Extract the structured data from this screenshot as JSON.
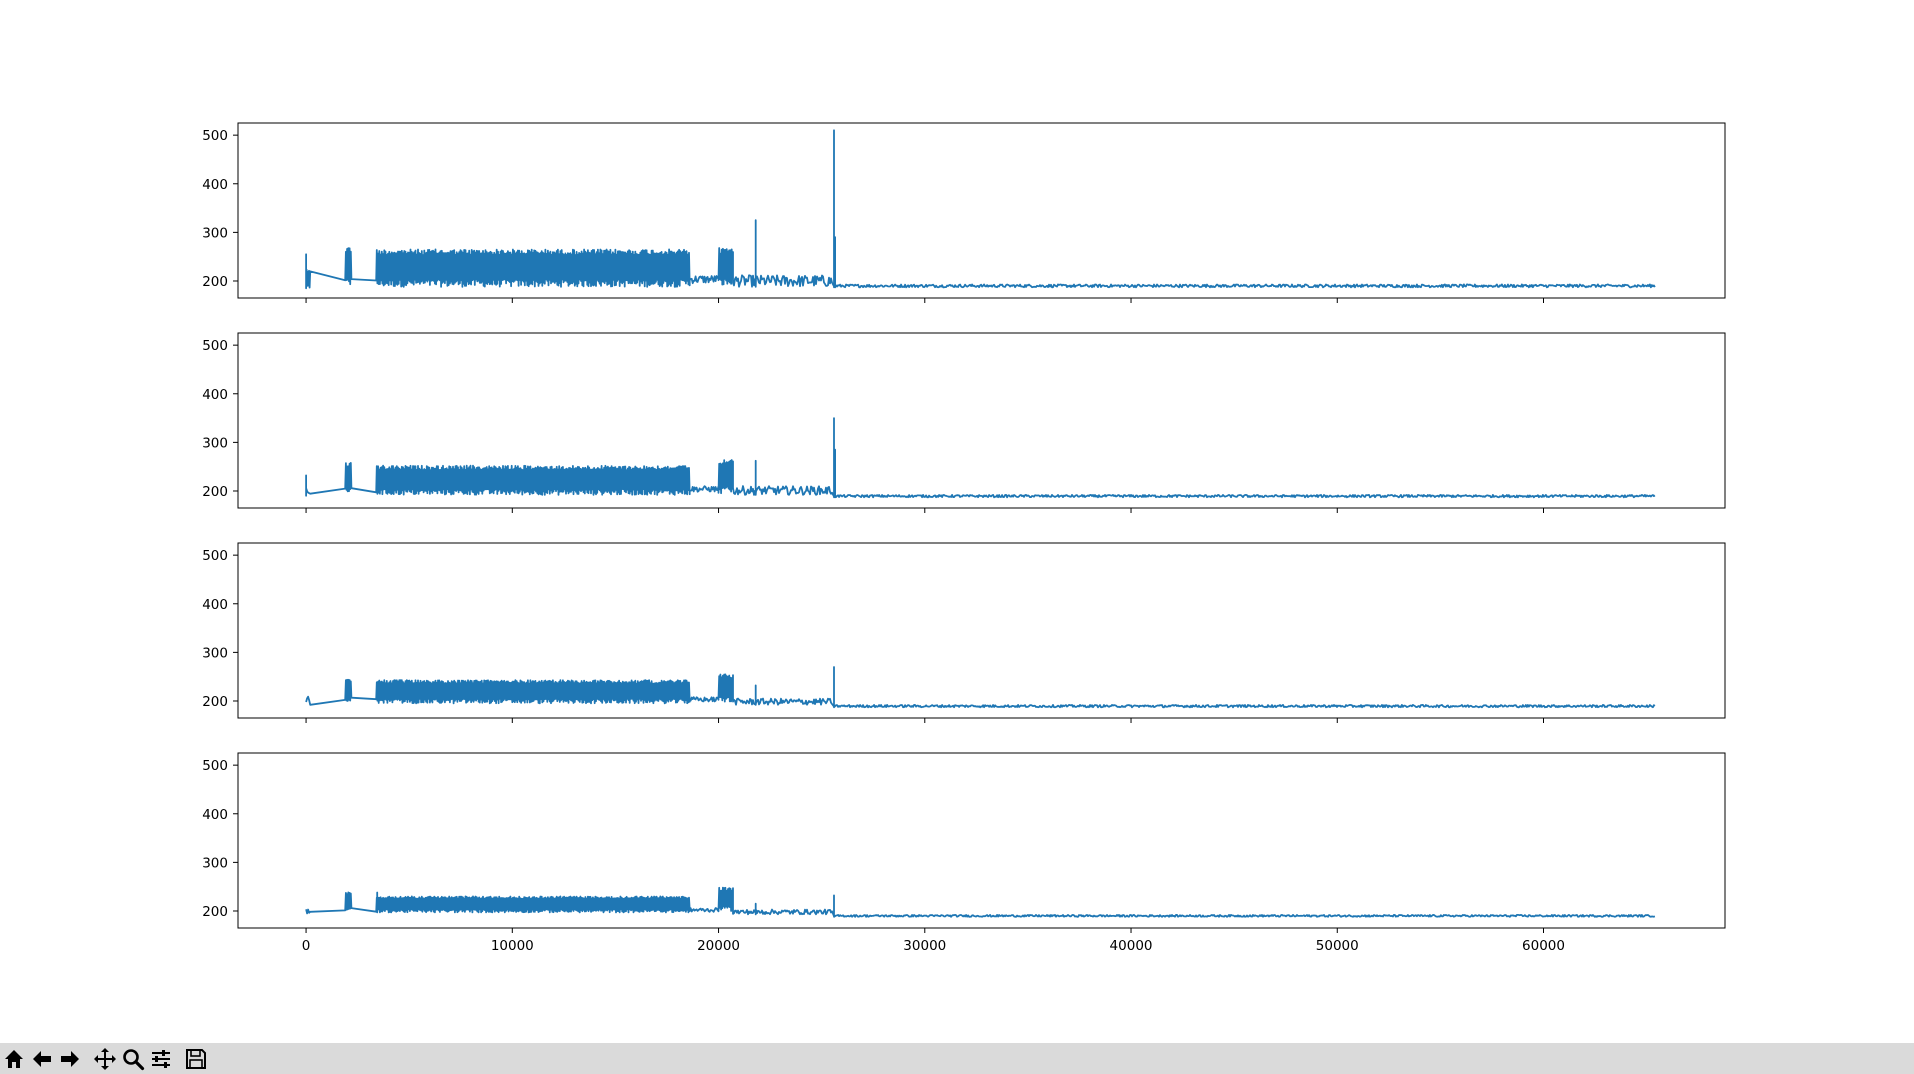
{
  "colors": {
    "line": "#1f77b4",
    "axes": "#000000",
    "background": "#ffffff",
    "toolbar": "#dadada"
  },
  "toolbar": {
    "buttons": [
      {
        "name": "home-button",
        "icon": "home-icon"
      },
      {
        "name": "back-button",
        "icon": "arrow-left-icon"
      },
      {
        "name": "forward-button",
        "icon": "arrow-right-icon"
      },
      {
        "name": "pan-button",
        "icon": "move-icon"
      },
      {
        "name": "zoom-button",
        "icon": "zoom-icon"
      },
      {
        "name": "configure-subplots-button",
        "icon": "sliders-icon"
      },
      {
        "name": "save-button",
        "icon": "save-icon"
      }
    ]
  },
  "chart_data": [
    {
      "type": "line",
      "xlim": [
        -3300,
        68800
      ],
      "ylim": [
        165,
        525
      ],
      "xticks": [
        0,
        10000,
        20000,
        30000,
        40000,
        50000,
        60000
      ],
      "xtick_labels_visible": false,
      "yticks": [
        200,
        300,
        400,
        500
      ],
      "segments": [
        [
          0,
          200,
          185,
          225
        ],
        [
          1900,
          2200,
          190,
          270
        ],
        [
          3400,
          18600,
          188,
          265
        ],
        [
          18600,
          20000,
          195,
          212
        ],
        [
          20000,
          20700,
          190,
          268
        ],
        [
          20700,
          25500,
          188,
          212
        ],
        [
          25700,
          65400,
          187,
          193
        ]
      ],
      "spikes": [
        [
          0,
          255
        ],
        [
          21800,
          325
        ],
        [
          25600,
          510
        ],
        [
          25650,
          290
        ]
      ]
    },
    {
      "type": "line",
      "xlim": [
        -3300,
        68800
      ],
      "ylim": [
        165,
        525
      ],
      "xticks": [
        0,
        10000,
        20000,
        30000,
        40000,
        50000,
        60000
      ],
      "xtick_labels_visible": false,
      "yticks": [
        200,
        300,
        400,
        500
      ],
      "segments": [
        [
          0,
          200,
          190,
          215
        ],
        [
          1900,
          2200,
          195,
          260
        ],
        [
          3400,
          18600,
          192,
          252
        ],
        [
          18600,
          20000,
          198,
          210
        ],
        [
          20000,
          20700,
          195,
          265
        ],
        [
          20700,
          25500,
          192,
          210
        ],
        [
          25700,
          65400,
          187,
          192
        ]
      ],
      "spikes": [
        [
          0,
          232
        ],
        [
          21800,
          262
        ],
        [
          25600,
          350
        ],
        [
          25650,
          285
        ]
      ]
    },
    {
      "type": "line",
      "xlim": [
        -3300,
        68800
      ],
      "ylim": [
        165,
        525
      ],
      "xticks": [
        0,
        10000,
        20000,
        30000,
        40000,
        50000,
        60000
      ],
      "xtick_labels_visible": false,
      "yticks": [
        200,
        300,
        400,
        500
      ],
      "segments": [
        [
          0,
          200,
          192,
          210
        ],
        [
          1900,
          2200,
          198,
          245
        ],
        [
          3400,
          18600,
          195,
          243
        ],
        [
          18600,
          20000,
          198,
          208
        ],
        [
          20000,
          20700,
          198,
          255
        ],
        [
          20700,
          25500,
          192,
          205
        ],
        [
          25700,
          65400,
          187,
          192
        ]
      ],
      "spikes": [
        [
          21800,
          232
        ],
        [
          25600,
          270
        ]
      ]
    },
    {
      "type": "line",
      "xlim": [
        -3300,
        68800
      ],
      "ylim": [
        165,
        525
      ],
      "xticks": [
        0,
        10000,
        20000,
        30000,
        40000,
        50000,
        60000
      ],
      "xtick_labels": [
        "0",
        "10000",
        "20000",
        "30000",
        "40000",
        "50000",
        "60000"
      ],
      "xtick_labels_visible": true,
      "yticks": [
        200,
        300,
        400,
        500
      ],
      "segments": [
        [
          0,
          200,
          194,
          206
        ],
        [
          1900,
          2200,
          198,
          240
        ],
        [
          3400,
          18600,
          197,
          230
        ],
        [
          18600,
          20000,
          198,
          206
        ],
        [
          20000,
          20700,
          200,
          248
        ],
        [
          20700,
          25500,
          193,
          203
        ],
        [
          25700,
          65400,
          188,
          192
        ]
      ],
      "spikes": [
        [
          3450,
          238
        ],
        [
          21800,
          215
        ],
        [
          25600,
          232
        ]
      ]
    }
  ]
}
